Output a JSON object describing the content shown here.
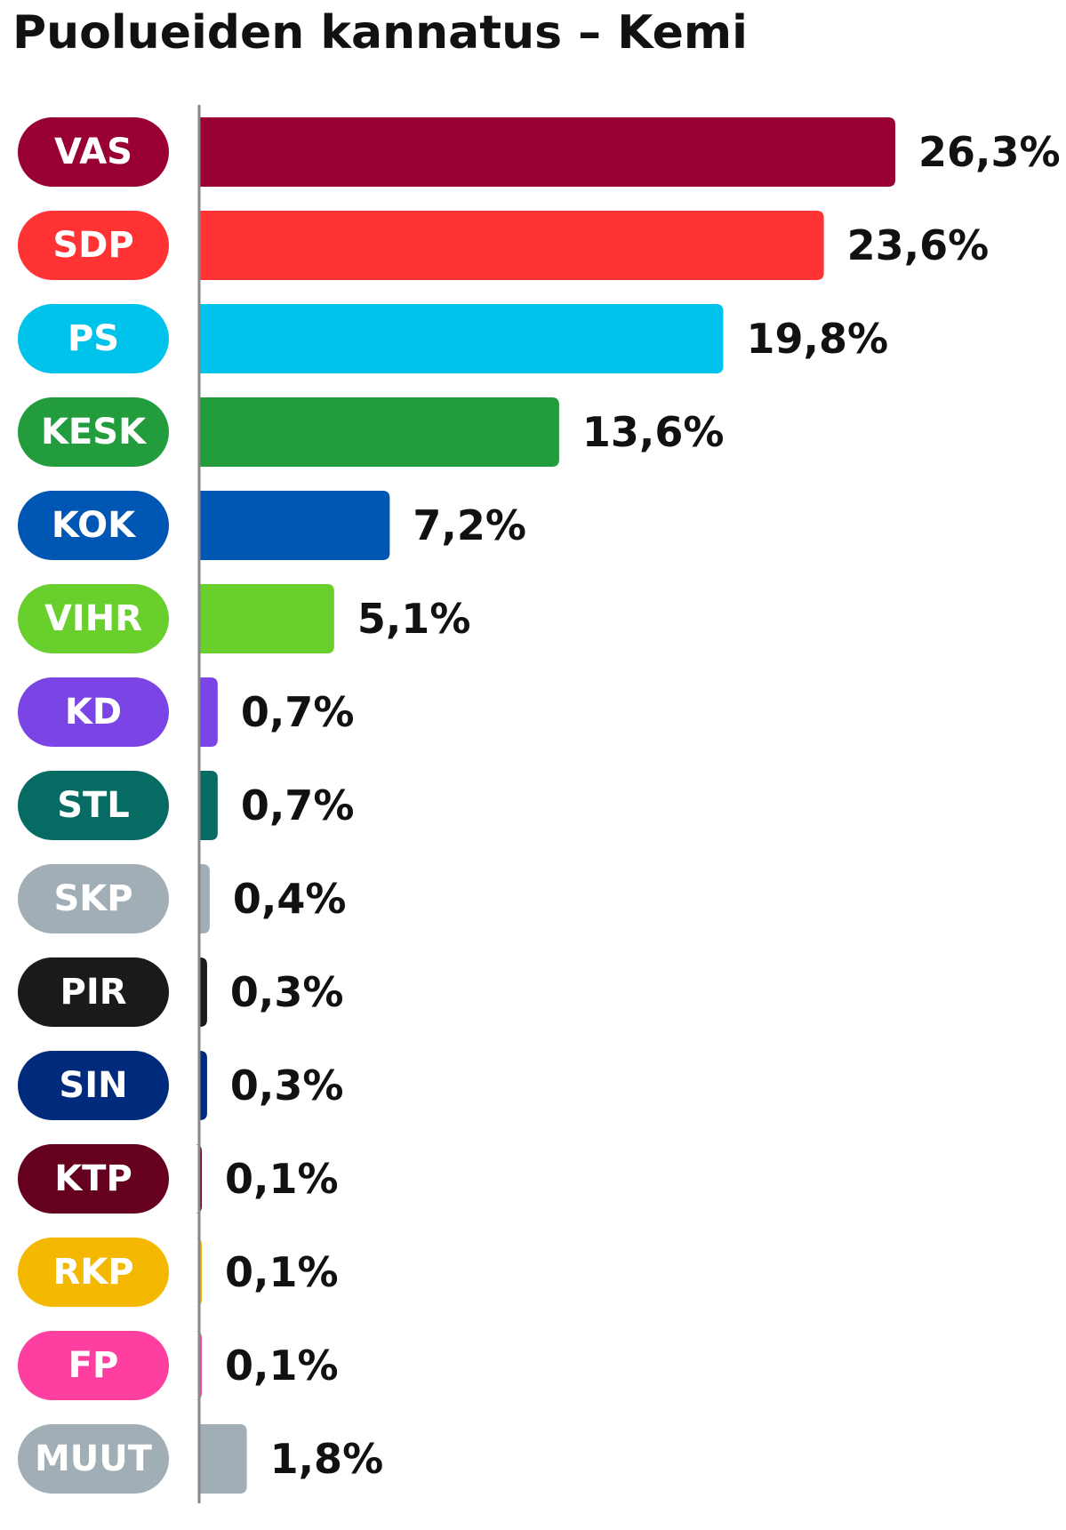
{
  "chart_data": {
    "type": "bar",
    "orientation": "horizontal",
    "title": "Puolueiden kannatus – Kemi",
    "xlabel": "",
    "ylabel": "",
    "unit": "%",
    "xlim": [
      0,
      26.3
    ],
    "grid": false,
    "legend": "none",
    "categories": [
      "VAS",
      "SDP",
      "PS",
      "KESK",
      "KOK",
      "VIHR",
      "KD",
      "STL",
      "SKP",
      "PIR",
      "SIN",
      "KTP",
      "RKP",
      "FP",
      "MUUT"
    ],
    "values": [
      26.3,
      23.6,
      19.8,
      13.6,
      7.2,
      5.1,
      0.7,
      0.7,
      0.4,
      0.3,
      0.3,
      0.1,
      0.1,
      0.1,
      1.8
    ],
    "value_labels": [
      "26,3%",
      "23,6%",
      "19,8%",
      "13,6%",
      "7,2%",
      "5,1%",
      "0,7%",
      "0,7%",
      "0,4%",
      "0,3%",
      "0,3%",
      "0,1%",
      "0,1%",
      "0,1%",
      "1,8%"
    ],
    "colors": [
      "#990033",
      "#ff3333",
      "#00c3ec",
      "#229c3d",
      "#0056b3",
      "#69cf2c",
      "#7b45e6",
      "#066b62",
      "#a1aeb5",
      "#1a1a1a",
      "#002b7d",
      "#66001f",
      "#f5b800",
      "#ff3fa0",
      "#a1aeb5"
    ]
  }
}
